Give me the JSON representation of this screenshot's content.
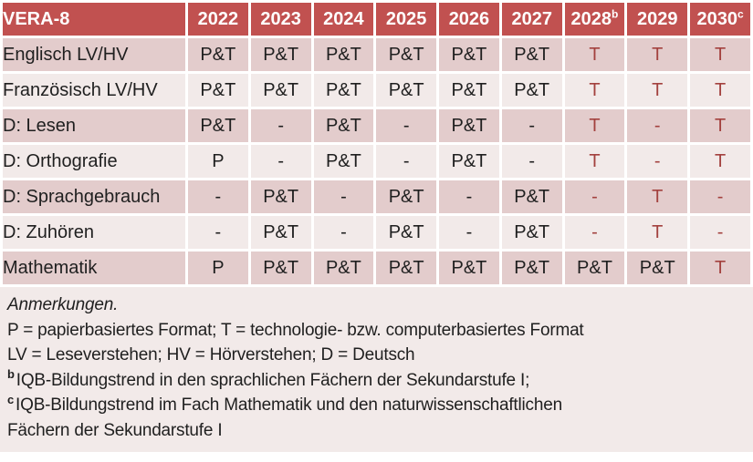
{
  "colors": {
    "header_bg": "#C15150",
    "header_text": "#FFFFFF",
    "band_dark": "#E3CCCC",
    "band_light": "#F2EAE9",
    "notes_bg": "#F2EAE9",
    "value_black": "#1F1F1F",
    "value_red": "#A3413E"
  },
  "table": {
    "title": "VERA-8",
    "header": [
      {
        "text": "VERA-8",
        "sup": ""
      },
      {
        "text": "2022",
        "sup": ""
      },
      {
        "text": "2023",
        "sup": ""
      },
      {
        "text": "2024",
        "sup": ""
      },
      {
        "text": "2025",
        "sup": ""
      },
      {
        "text": "2026",
        "sup": ""
      },
      {
        "text": "2027",
        "sup": ""
      },
      {
        "text": "2028",
        "sup": "b"
      },
      {
        "text": "2029",
        "sup": ""
      },
      {
        "text": "2030",
        "sup": "c"
      }
    ],
    "rows": [
      {
        "label": "Englisch LV/HV",
        "cells": [
          {
            "text": "P&T",
            "color": "black"
          },
          {
            "text": "P&T",
            "color": "black"
          },
          {
            "text": "P&T",
            "color": "black"
          },
          {
            "text": "P&T",
            "color": "black"
          },
          {
            "text": "P&T",
            "color": "black"
          },
          {
            "text": "P&T",
            "color": "black"
          },
          {
            "text": "T",
            "color": "red"
          },
          {
            "text": "T",
            "color": "red"
          },
          {
            "text": "T",
            "color": "red"
          }
        ]
      },
      {
        "label": "Französisch LV/HV",
        "cells": [
          {
            "text": "P&T",
            "color": "black"
          },
          {
            "text": "P&T",
            "color": "black"
          },
          {
            "text": "P&T",
            "color": "black"
          },
          {
            "text": "P&T",
            "color": "black"
          },
          {
            "text": "P&T",
            "color": "black"
          },
          {
            "text": "P&T",
            "color": "black"
          },
          {
            "text": "T",
            "color": "red"
          },
          {
            "text": "T",
            "color": "red"
          },
          {
            "text": "T",
            "color": "red"
          }
        ]
      },
      {
        "label": "D: Lesen",
        "cells": [
          {
            "text": "P&T",
            "color": "black"
          },
          {
            "text": "-",
            "color": "black"
          },
          {
            "text": "P&T",
            "color": "black"
          },
          {
            "text": "-",
            "color": "black"
          },
          {
            "text": "P&T",
            "color": "black"
          },
          {
            "text": "-",
            "color": "black"
          },
          {
            "text": "T",
            "color": "red"
          },
          {
            "text": "-",
            "color": "red"
          },
          {
            "text": "T",
            "color": "red"
          }
        ]
      },
      {
        "label": "D: Orthografie",
        "cells": [
          {
            "text": "P",
            "color": "black"
          },
          {
            "text": "-",
            "color": "black"
          },
          {
            "text": "P&T",
            "color": "black"
          },
          {
            "text": "-",
            "color": "black"
          },
          {
            "text": "P&T",
            "color": "black"
          },
          {
            "text": "-",
            "color": "black"
          },
          {
            "text": "T",
            "color": "red"
          },
          {
            "text": "-",
            "color": "red"
          },
          {
            "text": "T",
            "color": "red"
          }
        ]
      },
      {
        "label": "D: Sprachgebrauch",
        "cells": [
          {
            "text": "-",
            "color": "black"
          },
          {
            "text": "P&T",
            "color": "black"
          },
          {
            "text": "-",
            "color": "black"
          },
          {
            "text": "P&T",
            "color": "black"
          },
          {
            "text": "-",
            "color": "black"
          },
          {
            "text": "P&T",
            "color": "black"
          },
          {
            "text": "-",
            "color": "red"
          },
          {
            "text": "T",
            "color": "red"
          },
          {
            "text": "-",
            "color": "red"
          }
        ]
      },
      {
        "label": "D: Zuhören",
        "cells": [
          {
            "text": "-",
            "color": "black"
          },
          {
            "text": "P&T",
            "color": "black"
          },
          {
            "text": "-",
            "color": "black"
          },
          {
            "text": "P&T",
            "color": "black"
          },
          {
            "text": "-",
            "color": "black"
          },
          {
            "text": "P&T",
            "color": "black"
          },
          {
            "text": "-",
            "color": "red"
          },
          {
            "text": "T",
            "color": "red"
          },
          {
            "text": "-",
            "color": "red"
          }
        ]
      },
      {
        "label": "Mathematik",
        "cells": [
          {
            "text": "P",
            "color": "black"
          },
          {
            "text": "P&T",
            "color": "black"
          },
          {
            "text": "P&T",
            "color": "black"
          },
          {
            "text": "P&T",
            "color": "black"
          },
          {
            "text": "P&T",
            "color": "black"
          },
          {
            "text": "P&T",
            "color": "black"
          },
          {
            "text": "P&T",
            "color": "black"
          },
          {
            "text": "P&T",
            "color": "black"
          },
          {
            "text": "T",
            "color": "red"
          }
        ]
      }
    ]
  },
  "notes": [
    {
      "sup": "",
      "italic": true,
      "text": "Anmerkungen."
    },
    {
      "sup": "",
      "italic": false,
      "text": "P = papierbasiertes Format; T = technologie- bzw. computerbasiertes Format"
    },
    {
      "sup": "",
      "italic": false,
      "text": "LV = Leseverstehen; HV = Hörverstehen; D = Deutsch"
    },
    {
      "sup": "b",
      "italic": false,
      "text": "IQB-Bildungstrend in den sprachlichen Fächern der Sekundarstufe I;"
    },
    {
      "sup": "c",
      "italic": false,
      "text": "IQB-Bildungstrend im Fach Mathematik und den naturwissenschaftlichen\nFächern der Sekundarstufe I"
    }
  ]
}
